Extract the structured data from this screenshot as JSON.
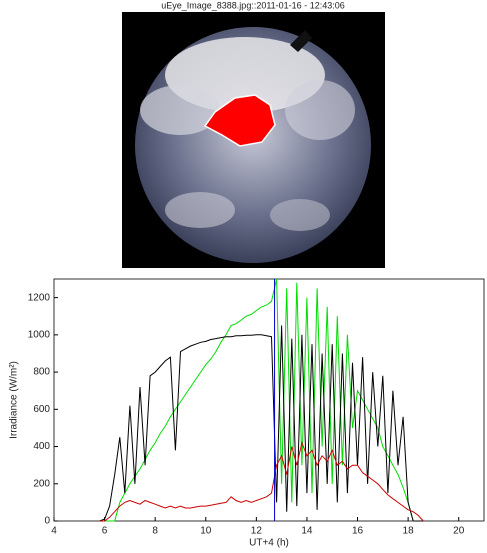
{
  "image": {
    "caption": "uEye_Image_8388.jpg::2011-01-16 - 12:43:06"
  },
  "chart_data": {
    "type": "line",
    "xlabel": "UT+4 (h)",
    "ylabel": "Irradiance (W/m²)",
    "xlim": [
      4,
      21
    ],
    "xticks": [
      4,
      6,
      8,
      10,
      12,
      14,
      16,
      18,
      20
    ],
    "ylim": [
      0,
      1300
    ],
    "yticks": [
      0,
      200,
      400,
      600,
      800,
      1000,
      1200
    ],
    "x": [
      5.8,
      6.0,
      6.2,
      6.4,
      6.6,
      6.8,
      7.0,
      7.2,
      7.4,
      7.6,
      7.8,
      8.0,
      8.2,
      8.4,
      8.6,
      8.8,
      9.0,
      9.2,
      9.4,
      9.6,
      9.8,
      10.0,
      10.2,
      10.4,
      10.6,
      10.8,
      11.0,
      11.2,
      11.4,
      11.6,
      11.8,
      12.0,
      12.2,
      12.4,
      12.6,
      12.8,
      13.0,
      13.2,
      13.4,
      13.6,
      13.8,
      14.0,
      14.2,
      14.4,
      14.6,
      14.8,
      15.0,
      15.2,
      15.4,
      15.6,
      15.8,
      16.0,
      16.2,
      16.4,
      16.6,
      16.8,
      17.0,
      17.2,
      17.4,
      17.6,
      17.8,
      18.0,
      18.2,
      18.4,
      18.6
    ],
    "series": [
      {
        "color": "#00dd00",
        "values": [
          0,
          0,
          0,
          0,
          100,
          150,
          200,
          240,
          280,
          330,
          380,
          420,
          470,
          510,
          560,
          600,
          640,
          680,
          720,
          760,
          800,
          840,
          870,
          910,
          960,
          1000,
          1050,
          1060,
          1080,
          1100,
          1110,
          1130,
          1150,
          1160,
          1180,
          1300,
          200,
          1250,
          100,
          1280,
          300,
          1200,
          150,
          1250,
          400,
          1150,
          200,
          1100,
          300,
          1000,
          500,
          700,
          650,
          600,
          550,
          500,
          400,
          350,
          300,
          250,
          180,
          100,
          0,
          0,
          0
        ]
      },
      {
        "color": "#000000",
        "values": [
          0,
          10,
          80,
          250,
          450,
          150,
          620,
          200,
          720,
          300,
          780,
          800,
          830,
          860,
          880,
          380,
          910,
          925,
          940,
          950,
          960,
          965,
          975,
          980,
          985,
          990,
          990,
          995,
          995,
          998,
          998,
          1000,
          1000,
          995,
          990,
          100,
          1050,
          50,
          980,
          80,
          1000,
          150,
          950,
          60,
          900,
          200,
          950,
          100,
          900,
          150,
          850,
          300,
          880,
          200,
          800,
          400,
          780,
          150,
          700,
          300,
          560,
          100,
          0,
          0,
          0
        ]
      },
      {
        "color": "#cc0000",
        "values": [
          0,
          0,
          20,
          50,
          80,
          100,
          110,
          100,
          90,
          110,
          100,
          90,
          80,
          70,
          80,
          70,
          80,
          70,
          70,
          75,
          80,
          80,
          85,
          90,
          95,
          100,
          130,
          110,
          100,
          110,
          100,
          110,
          120,
          130,
          150,
          300,
          350,
          250,
          400,
          300,
          420,
          350,
          380,
          300,
          350,
          320,
          380,
          300,
          320,
          280,
          300,
          300,
          260,
          240,
          220,
          200,
          170,
          140,
          120,
          100,
          80,
          60,
          50,
          30,
          0
        ]
      }
    ],
    "vline": {
      "x": 12.72,
      "color": "#0000cc"
    }
  }
}
